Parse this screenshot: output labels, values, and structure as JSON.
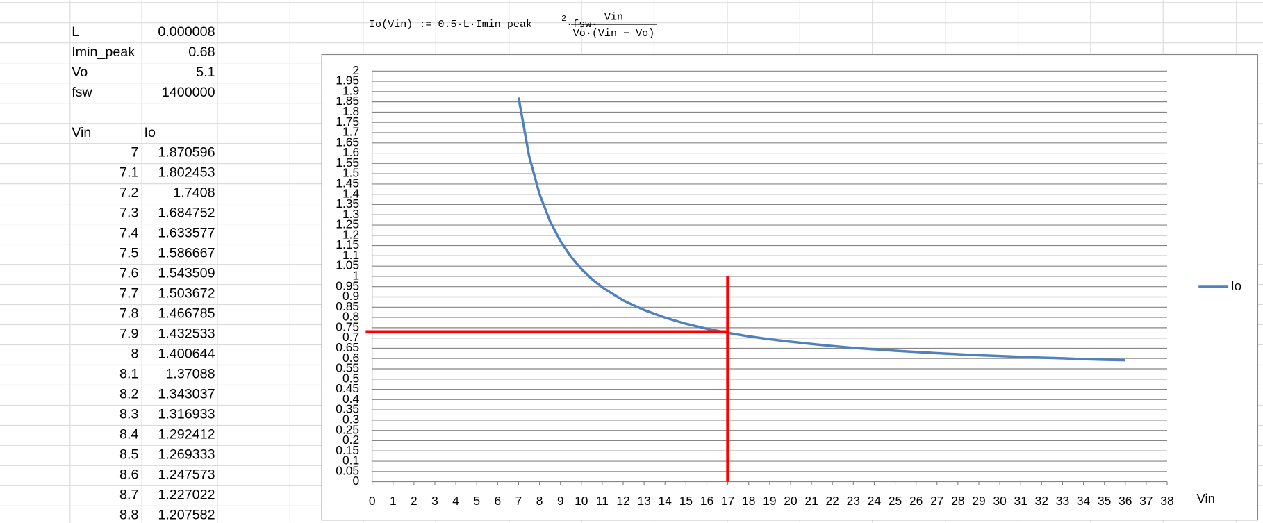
{
  "formula": {
    "text": "Io(Vin) := 0.5·L·Imin_peak",
    "exponent": "2",
    "factor": "·fsw·",
    "numerator": "Vin",
    "denominator": "Vo·(Vin − Vo)"
  },
  "parameters": [
    [
      "L",
      "0.000008"
    ],
    [
      "Imin_peak",
      "0.68"
    ],
    [
      "Vo",
      "5.1"
    ],
    [
      "fsw",
      "1400000"
    ]
  ],
  "table": {
    "header": [
      "Vin",
      "Io"
    ],
    "rows": [
      [
        "7",
        "1.870596"
      ],
      [
        "7.1",
        "1.802453"
      ],
      [
        "7.2",
        "1.7408"
      ],
      [
        "7.3",
        "1.684752"
      ],
      [
        "7.4",
        "1.633577"
      ],
      [
        "7.5",
        "1.586667"
      ],
      [
        "7.6",
        "1.543509"
      ],
      [
        "7.7",
        "1.503672"
      ],
      [
        "7.8",
        "1.466785"
      ],
      [
        "7.9",
        "1.432533"
      ],
      [
        "8",
        "1.400644"
      ],
      [
        "8.1",
        "1.37088"
      ],
      [
        "8.2",
        "1.343037"
      ],
      [
        "8.3",
        "1.316933"
      ],
      [
        "8.4",
        "1.292412"
      ],
      [
        "8.5",
        "1.269333"
      ],
      [
        "8.6",
        "1.247573"
      ],
      [
        "8.7",
        "1.227022"
      ],
      [
        "8.8",
        "1.207582"
      ]
    ]
  },
  "chart_data": {
    "type": "line",
    "x_label": "Vin",
    "x": [
      7,
      7.5,
      8,
      8.5,
      9,
      9.5,
      10,
      10.5,
      11,
      12,
      13,
      14,
      15,
      16,
      17,
      18,
      19,
      20,
      21,
      22,
      23,
      24,
      25,
      26,
      27,
      28,
      29,
      30,
      31,
      32,
      33,
      34,
      35,
      36
    ],
    "series": [
      {
        "name": "Io",
        "color": "#4f81bd",
        "values": [
          1.871,
          1.587,
          1.401,
          1.269,
          1.172,
          1.096,
          1.036,
          0.987,
          0.947,
          0.883,
          0.836,
          0.799,
          0.769,
          0.745,
          0.725,
          0.708,
          0.694,
          0.682,
          0.671,
          0.661,
          0.652,
          0.645,
          0.638,
          0.632,
          0.626,
          0.621,
          0.616,
          0.612,
          0.608,
          0.604,
          0.601,
          0.597,
          0.594,
          0.592
        ]
      }
    ],
    "xlim": [
      0,
      38
    ],
    "xticks": [
      0,
      1,
      2,
      3,
      4,
      5,
      6,
      7,
      8,
      9,
      10,
      11,
      12,
      13,
      14,
      15,
      16,
      17,
      18,
      19,
      20,
      21,
      22,
      23,
      24,
      25,
      26,
      27,
      28,
      29,
      30,
      31,
      32,
      33,
      34,
      35,
      36,
      37,
      38
    ],
    "ylim": [
      0,
      2
    ],
    "yticks": [
      0,
      0.05,
      0.1,
      0.15,
      0.2,
      0.25,
      0.3,
      0.35,
      0.4,
      0.45,
      0.5,
      0.55,
      0.6,
      0.65,
      0.7,
      0.75,
      0.8,
      0.85,
      0.9,
      0.95,
      1,
      1.05,
      1.1,
      1.15,
      1.2,
      1.25,
      1.3,
      1.35,
      1.4,
      1.45,
      1.5,
      1.55,
      1.6,
      1.65,
      1.7,
      1.75,
      1.8,
      1.85,
      1.9,
      1.95,
      2
    ],
    "grid": true,
    "legend": "right",
    "crosshair": {
      "x": 17,
      "y": 0.73,
      "y_end": 1,
      "color": "#ff0000"
    }
  }
}
